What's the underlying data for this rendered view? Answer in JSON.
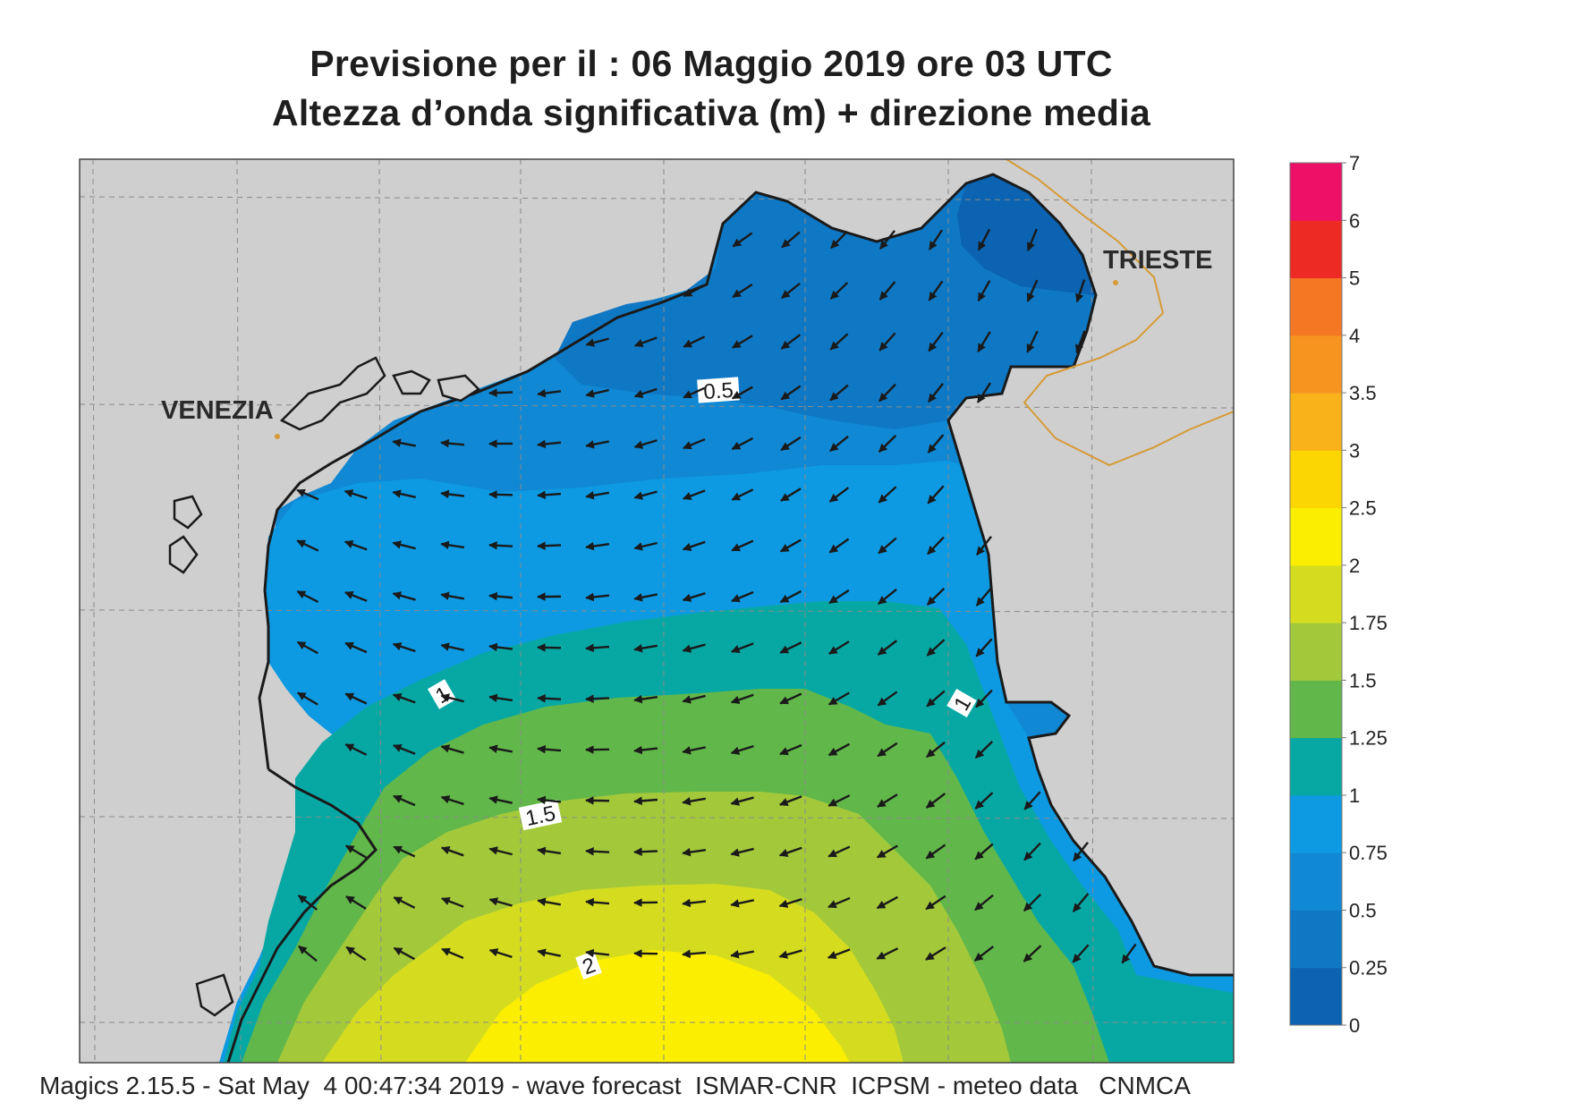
{
  "title": {
    "line1": "Previsione per il  :  06   Maggio  2019   ore 03 UTC",
    "line2": "Altezza d’onda significativa (m) + direzione media"
  },
  "map": {
    "cities": [
      {
        "name": "VENEZIA"
      },
      {
        "name": "TRIESTE"
      }
    ],
    "contour_labels": [
      "0.5",
      "1",
      "1",
      "1.5",
      "2"
    ],
    "colors": {
      "land": "#cfcfcf",
      "coast": "#1a1a1a",
      "border": "#d69a36",
      "grid": "#8a8a8a",
      "arrow": "#1a1a1a"
    }
  },
  "legend": {
    "levels": [
      "0",
      "0.25",
      "0.5",
      "0.75",
      "1",
      "1.25",
      "1.5",
      "1.75",
      "2",
      "2.5",
      "3",
      "3.5",
      "4",
      "5",
      "6",
      "7"
    ],
    "colors": [
      "#0b63b1",
      "#0f78c4",
      "#1088d3",
      "#0d9ae3",
      "#07a8a4",
      "#62b74a",
      "#a3c93a",
      "#d5dc20",
      "#fbee00",
      "#fcd600",
      "#f9b21a",
      "#f79420",
      "#f57623",
      "#ee2a24",
      "#ec1166"
    ]
  },
  "footer": {
    "text": "Magics 2.15.5 - Sat May  4 00:47:34 2019 - wave forecast  ISMAR-CNR  ICPSM - meteo data   CNMCA"
  }
}
